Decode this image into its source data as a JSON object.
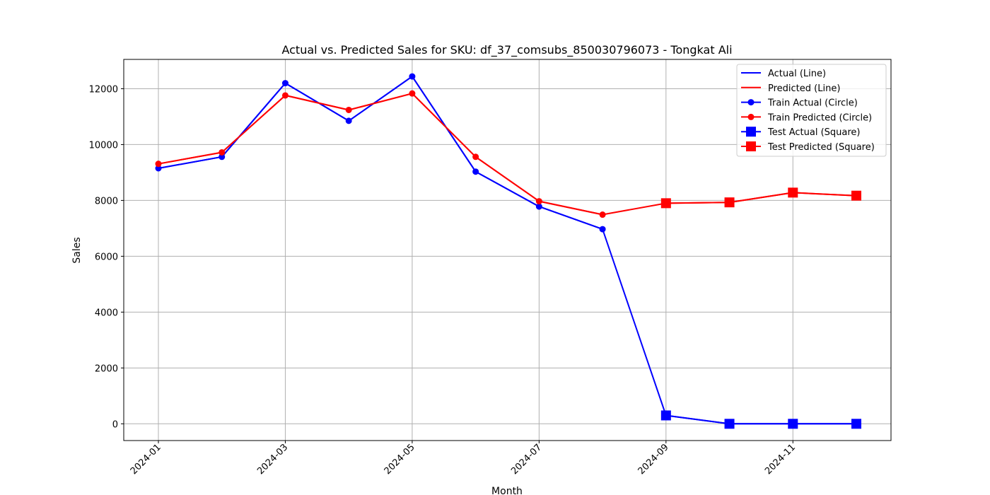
{
  "chart_data": {
    "type": "line",
    "title": "Actual vs. Predicted Sales for SKU: df_37_comsubs_850030796073 - Tongkat Ali",
    "xlabel": "Month",
    "ylabel": "Sales",
    "x": [
      "2024-01",
      "2024-02",
      "2024-03",
      "2024-04",
      "2024-05",
      "2024-06",
      "2024-07",
      "2024-08",
      "2024-09",
      "2024-10",
      "2024-11",
      "2024-12"
    ],
    "ylim": [
      -600,
      13050
    ],
    "y_ticks": [
      0,
      2000,
      4000,
      6000,
      8000,
      10000,
      12000
    ],
    "y_tick_labels": [
      "0",
      "2000",
      "4000",
      "6000",
      "8000",
      "10000",
      "12000"
    ],
    "x_ticks": [
      "2024-01",
      "2024-03",
      "2024-05",
      "2024-07",
      "2024-09",
      "2024-11"
    ],
    "x_tick_labels": [
      "2024-01",
      "2024-03",
      "2024-05",
      "2024-07",
      "2024-09",
      "2024-11"
    ],
    "grid": true,
    "legend_position": "top-right",
    "series": [
      {
        "name": "Actual (Line)",
        "color": "#0000ff",
        "marker": "none",
        "values": [
          9150,
          9560,
          12200,
          10850,
          12440,
          9030,
          7780,
          6970,
          300,
          0,
          0,
          0
        ]
      },
      {
        "name": "Predicted (Line)",
        "color": "#ff0000",
        "marker": "none",
        "values": [
          9310,
          9720,
          11760,
          11240,
          11830,
          9560,
          7970,
          7490,
          7900,
          7930,
          8280,
          8170
        ]
      },
      {
        "name": "Train Actual (Circle)",
        "color": "#0000ff",
        "marker": "circle",
        "values": [
          9150,
          9560,
          12200,
          10850,
          12440,
          9030,
          7780,
          6970,
          null,
          null,
          null,
          null
        ]
      },
      {
        "name": "Train Predicted (Circle)",
        "color": "#ff0000",
        "marker": "circle",
        "values": [
          9310,
          9720,
          11760,
          11240,
          11830,
          9560,
          7970,
          7490,
          null,
          null,
          null,
          null
        ]
      },
      {
        "name": "Test Actual (Square)",
        "color": "#0000ff",
        "marker": "square",
        "values": [
          null,
          null,
          null,
          null,
          null,
          null,
          null,
          null,
          300,
          0,
          0,
          0
        ]
      },
      {
        "name": "Test Predicted (Square)",
        "color": "#ff0000",
        "marker": "square",
        "values": [
          null,
          null,
          null,
          null,
          null,
          null,
          null,
          null,
          7900,
          7930,
          8280,
          8170
        ]
      }
    ]
  }
}
